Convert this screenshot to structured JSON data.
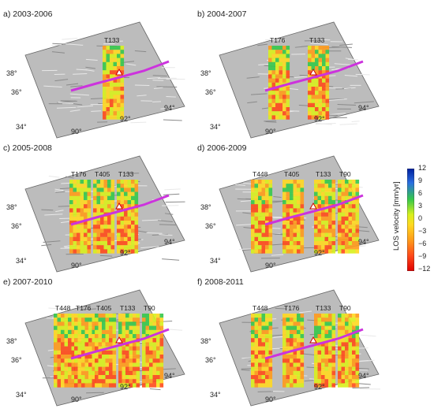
{
  "panels": [
    {
      "label": "a) 2003-2006",
      "tracks": [
        "T133"
      ],
      "lat_ticks": [
        "38°",
        "36°",
        "34°"
      ],
      "lon_ticks": [
        "90°",
        "92°",
        "94°"
      ]
    },
    {
      "label": "b) 2004-2007",
      "tracks": [
        "T176",
        "T133"
      ],
      "lat_ticks": [
        "38°",
        "36°",
        "34°"
      ],
      "lon_ticks": [
        "90°",
        "92°",
        "94°"
      ]
    },
    {
      "label": "c) 2005-2008",
      "tracks": [
        "T176",
        "T405",
        "T133"
      ],
      "lat_ticks": [
        "38°",
        "36°",
        "34°"
      ],
      "lon_ticks": [
        "90°",
        "92°",
        "94°"
      ]
    },
    {
      "label": "d) 2006-2009",
      "tracks": [
        "T448",
        "T405",
        "T133",
        "T90"
      ],
      "lat_ticks": [
        "38°",
        "36°",
        "34°"
      ],
      "lon_ticks": [
        "90°",
        "92°",
        "94°"
      ]
    },
    {
      "label": "e) 2007-2010",
      "tracks": [
        "T448",
        "T176",
        "T405",
        "T133",
        "T90"
      ],
      "lat_ticks": [
        "38°",
        "36°",
        "34°"
      ],
      "lon_ticks": [
        "90°",
        "92°",
        "94°"
      ]
    },
    {
      "label": "f) 2008-2011",
      "tracks": [
        "T448",
        "T176",
        "T133",
        "T90"
      ],
      "lat_ticks": [
        "38°",
        "36°",
        "34°"
      ],
      "lon_ticks": [
        "90°",
        "92°",
        "94°"
      ]
    }
  ],
  "colorbar": {
    "label": "LOS velocity [mm/yr]",
    "ticks": [
      "12",
      "9",
      "6",
      "3",
      "0",
      "−3",
      "−6",
      "−9",
      "−12"
    ],
    "colors": [
      "#001f9f",
      "#2a6ee0",
      "#35c84a",
      "#d8f01c",
      "#ffd820",
      "#ff9a1a",
      "#ff4a1a",
      "#e00000"
    ]
  },
  "colors": {
    "fault": "#cc33dd",
    "relief": "#bcbcbc"
  }
}
